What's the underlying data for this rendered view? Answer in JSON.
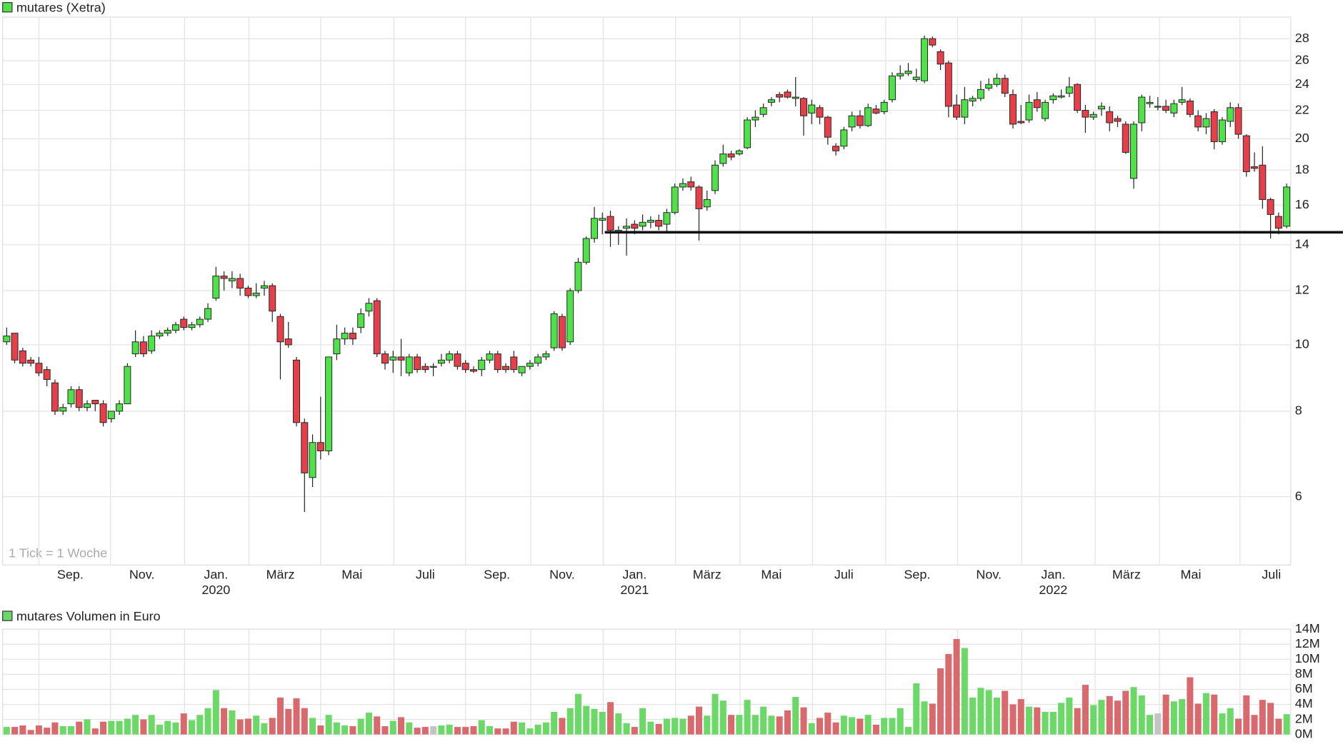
{
  "chart_data": [
    {
      "type": "candlestick",
      "title": "mutares (Xetra)",
      "note": "1 Tick = 1 Woche",
      "log_scale": true,
      "grid": true,
      "up_color": "#4fe04a",
      "down_color": "#e5404a",
      "ylim": [
        4.77,
        30.1
      ],
      "yticks": [
        6,
        8,
        10,
        12,
        14,
        16,
        18,
        20,
        22,
        24,
        26,
        28
      ],
      "xlim": [
        -0.5,
        159.5
      ],
      "xticks": [
        {
          "value": 7.9,
          "label": "Sep."
        },
        {
          "value": 16.8,
          "label": "Nov."
        },
        {
          "value": 26.0,
          "label": "Jan."
        },
        {
          "value": 34.0,
          "label": "März"
        },
        {
          "value": 42.9,
          "label": "Mai"
        },
        {
          "value": 52.0,
          "label": "Juli"
        },
        {
          "value": 60.9,
          "label": "Sep."
        },
        {
          "value": 69.0,
          "label": "Nov."
        },
        {
          "value": 78.0,
          "label": "Jan."
        },
        {
          "value": 87.0,
          "label": "März"
        },
        {
          "value": 95.0,
          "label": "Mai"
        },
        {
          "value": 104.0,
          "label": "Juli"
        },
        {
          "value": 113.1,
          "label": "Sep."
        },
        {
          "value": 122.0,
          "label": "Nov."
        },
        {
          "value": 130.0,
          "label": "Jan."
        },
        {
          "value": 139.1,
          "label": "März"
        },
        {
          "value": 147.1,
          "label": "Mai"
        },
        {
          "value": 157.1,
          "label": "Juli"
        }
      ],
      "year_labels": [
        {
          "value": 26.0,
          "label": "2020"
        },
        {
          "value": 78.0,
          "label": "2021"
        },
        {
          "value": 130.0,
          "label": "2022"
        }
      ],
      "support_line": {
        "x_start": 74.3,
        "value": 14.6
      },
      "open": [
        10.1,
        10.4,
        9.8,
        9.5,
        9.4,
        9.2,
        8.8,
        8.0,
        8.2,
        8.6,
        8.1,
        8.3,
        8.2,
        7.8,
        8.0,
        8.2,
        9.7,
        10.1,
        9.8,
        10.3,
        10.4,
        10.5,
        10.9,
        10.6,
        10.7,
        10.9,
        11.7,
        12.6,
        12.4,
        12.5,
        12.1,
        11.8,
        12.1,
        12.2,
        11.0,
        10.2,
        9.5,
        7.7,
        6.4,
        7.2,
        7.0,
        9.7,
        10.2,
        10.4,
        10.6,
        11.2,
        11.6,
        9.7,
        9.5,
        9.6,
        9.1,
        9.6,
        9.3,
        9.3,
        9.4,
        9.5,
        9.7,
        9.4,
        9.2,
        9.2,
        9.5,
        9.7,
        9.3,
        9.6,
        9.1,
        9.3,
        9.4,
        9.6,
        9.9,
        11.0,
        10.1,
        12.0,
        13.2,
        14.3,
        15.2,
        15.4,
        14.6,
        14.8,
        15.0,
        14.9,
        15.1,
        15.2,
        15.0,
        15.6,
        17.0,
        17.3,
        17.0,
        15.9,
        16.8,
        18.4,
        19.0,
        19.0,
        19.4,
        21.3,
        21.7,
        22.6,
        23.2,
        23.4,
        22.9,
        22.9,
        21.8,
        22.2,
        21.5,
        19.5,
        19.5,
        20.8,
        21.6,
        20.9,
        22.1,
        21.9,
        22.8,
        24.7,
        24.9,
        24.4,
        24.3,
        28.0,
        26.8,
        25.8,
        22.4,
        21.5,
        22.7,
        22.9,
        23.7,
        24.0,
        24.5,
        23.2,
        21.2,
        21.3,
        22.8,
        21.4,
        22.8,
        23.0,
        23.3,
        24.0,
        22.0,
        21.5,
        22.1,
        21.9,
        21.4,
        21.0,
        17.5,
        21.1,
        22.5,
        22.3,
        22.3,
        21.8,
        22.6,
        22.7,
        21.6,
        20.8,
        21.9,
        19.8,
        21.2,
        22.2,
        20.2,
        18.2,
        18.3,
        16.3,
        15.4,
        14.9
      ],
      "high": [
        10.6,
        10.4,
        9.9,
        9.6,
        9.6,
        9.3,
        8.9,
        8.2,
        8.7,
        8.7,
        8.3,
        8.3,
        8.3,
        8.0,
        8.3,
        9.4,
        10.5,
        10.3,
        10.5,
        10.5,
        10.6,
        10.8,
        11.0,
        10.8,
        11.0,
        11.5,
        13.0,
        12.8,
        12.8,
        12.7,
        12.2,
        12.3,
        12.4,
        12.3,
        11.1,
        10.8,
        9.6,
        7.8,
        7.4,
        8.4,
        9.6,
        10.7,
        10.6,
        10.6,
        11.3,
        11.7,
        11.7,
        9.8,
        9.8,
        10.2,
        9.7,
        9.7,
        9.4,
        9.4,
        9.7,
        9.8,
        9.8,
        9.5,
        9.3,
        9.6,
        9.8,
        9.8,
        9.4,
        9.8,
        9.3,
        9.5,
        9.7,
        9.8,
        11.2,
        11.1,
        12.1,
        13.4,
        14.4,
        15.9,
        15.6,
        15.7,
        14.9,
        15.3,
        15.2,
        15.5,
        15.4,
        15.5,
        15.8,
        17.2,
        17.5,
        17.6,
        17.1,
        16.8,
        18.6,
        19.6,
        19.2,
        19.3,
        21.5,
        22.0,
        22.5,
        23.0,
        23.4,
        23.6,
        24.6,
        23.0,
        22.8,
        22.4,
        21.6,
        19.7,
        20.8,
        21.9,
        22.0,
        22.5,
        22.4,
        22.8,
        25.0,
        25.6,
        25.8,
        25.3,
        28.3,
        28.2,
        27.0,
        26.0,
        23.2,
        23.8,
        23.1,
        24.3,
        24.5,
        24.9,
        24.8,
        23.6,
        22.4,
        23.2,
        23.4,
        22.8,
        23.3,
        23.6,
        24.6,
        24.1,
        22.4,
        21.9,
        22.6,
        22.3,
        21.6,
        21.2,
        21.2,
        23.2,
        23.1,
        23.0,
        22.8,
        22.8,
        23.8,
        22.9,
        22.0,
        21.8,
        22.1,
        21.5,
        22.6,
        22.5,
        20.3,
        19.1,
        19.5,
        16.4,
        15.6,
        17.2
      ],
      "low": [
        10.0,
        9.4,
        9.3,
        9.3,
        9.0,
        8.7,
        7.9,
        7.9,
        8.1,
        8.0,
        8.0,
        8.0,
        7.6,
        7.7,
        7.9,
        8.2,
        9.6,
        9.6,
        9.7,
        10.2,
        10.3,
        10.4,
        10.5,
        10.5,
        10.6,
        10.8,
        11.6,
        12.0,
        12.1,
        11.8,
        11.7,
        11.7,
        11.8,
        10.8,
        8.9,
        9.9,
        7.6,
        5.7,
        6.2,
        6.8,
        6.9,
        9.5,
        10.0,
        10.0,
        10.4,
        11.0,
        9.6,
        9.2,
        9.1,
        9.0,
        9.0,
        9.1,
        9.1,
        9.0,
        9.3,
        9.4,
        9.2,
        9.1,
        9.1,
        9.0,
        9.4,
        9.1,
        9.1,
        9.1,
        9.0,
        9.2,
        9.3,
        9.5,
        9.8,
        9.8,
        10.0,
        11.9,
        13.1,
        14.1,
        14.5,
        13.9,
        14.0,
        13.5,
        14.5,
        14.7,
        14.8,
        14.7,
        14.6,
        15.5,
        16.8,
        16.8,
        14.2,
        15.7,
        16.6,
        18.2,
        18.6,
        18.9,
        19.3,
        20.8,
        21.5,
        22.3,
        22.6,
        22.9,
        22.3,
        20.2,
        21.0,
        21.0,
        19.6,
        18.9,
        19.3,
        20.5,
        20.7,
        20.8,
        21.7,
        21.7,
        22.6,
        24.4,
        24.7,
        24.2,
        24.1,
        27.2,
        25.2,
        21.5,
        21.3,
        21.0,
        22.3,
        22.7,
        23.5,
        23.8,
        23.0,
        20.7,
        21.0,
        21.1,
        21.9,
        21.2,
        22.5,
        22.9,
        23.0,
        21.8,
        20.4,
        21.3,
        21.6,
        20.5,
        20.8,
        19.0,
        16.9,
        20.5,
        22.2,
        22.0,
        21.8,
        21.5,
        22.4,
        21.5,
        20.5,
        20.3,
        19.3,
        19.6,
        20.8,
        20.0,
        17.6,
        17.9,
        15.8,
        14.3,
        14.5,
        14.8
      ],
      "close": [
        10.3,
        9.5,
        9.4,
        9.4,
        9.1,
        8.9,
        8.0,
        8.1,
        8.6,
        8.1,
        8.2,
        8.2,
        7.7,
        8.0,
        8.2,
        9.3,
        10.1,
        9.7,
        10.3,
        10.4,
        10.5,
        10.7,
        10.6,
        10.7,
        10.9,
        11.3,
        12.6,
        12.5,
        12.5,
        12.1,
        11.8,
        11.9,
        12.2,
        11.2,
        10.1,
        10.0,
        7.7,
        6.5,
        7.2,
        7.0,
        9.6,
        10.2,
        10.4,
        10.2,
        11.1,
        11.5,
        9.7,
        9.4,
        9.6,
        9.5,
        9.6,
        9.2,
        9.2,
        9.3,
        9.5,
        9.7,
        9.3,
        9.2,
        9.15,
        9.5,
        9.7,
        9.2,
        9.2,
        9.2,
        9.3,
        9.4,
        9.6,
        9.7,
        11.1,
        9.9,
        12.0,
        13.2,
        14.3,
        15.3,
        15.3,
        14.7,
        14.7,
        14.9,
        14.8,
        15.1,
        15.2,
        14.9,
        15.6,
        17.0,
        17.2,
        17.0,
        15.8,
        16.3,
        18.3,
        19.0,
        18.8,
        19.2,
        21.3,
        21.5,
        22.2,
        22.8,
        23.0,
        23.0,
        23.0,
        21.6,
        22.4,
        21.5,
        20.1,
        19.2,
        20.6,
        21.6,
        20.9,
        22.2,
        21.8,
        22.6,
        24.7,
        24.9,
        25.1,
        24.6,
        28.0,
        27.4,
        25.7,
        22.3,
        21.5,
        22.8,
        22.9,
        23.6,
        24.0,
        24.5,
        23.3,
        21.0,
        21.1,
        22.6,
        22.2,
        22.6,
        23.1,
        23.1,
        23.8,
        22.0,
        21.5,
        21.7,
        22.3,
        21.1,
        21.2,
        19.1,
        21.0,
        23.0,
        22.6,
        22.3,
        22.0,
        22.5,
        22.8,
        21.7,
        20.8,
        21.4,
        19.8,
        21.3,
        22.2,
        20.3,
        17.9,
        18.1,
        16.3,
        15.5,
        14.8,
        17.0
      ]
    },
    {
      "type": "bar",
      "title": "mutares Volumen in Euro",
      "grid": true,
      "up_color": "#6cd868",
      "down_color": "#d86a6e",
      "flat_color": "#c4c4c4",
      "ylim": [
        0,
        14000000
      ],
      "yticks": [
        {
          "value": 0,
          "label": "0M"
        },
        {
          "value": 2000000,
          "label": "2M"
        },
        {
          "value": 4000000,
          "label": "4M"
        },
        {
          "value": 6000000,
          "label": "6M"
        },
        {
          "value": 8000000,
          "label": "8M"
        },
        {
          "value": 10000000,
          "label": "10M"
        },
        {
          "value": 12000000,
          "label": "12M"
        },
        {
          "value": 14000000,
          "label": "14M"
        }
      ],
      "values": [
        1000000,
        1000000,
        1200000,
        600000,
        1200000,
        900000,
        1600000,
        1100000,
        1100000,
        1700000,
        2000000,
        800000,
        1700000,
        1800000,
        1800000,
        2100000,
        2600000,
        2000000,
        2600000,
        1300000,
        1800000,
        1600000,
        2800000,
        1900000,
        2600000,
        3500000,
        5900000,
        3500000,
        3200000,
        2000000,
        2100000,
        2500000,
        1500000,
        2200000,
        4900000,
        3400000,
        4800000,
        3500000,
        2200000,
        1200000,
        2600000,
        1600000,
        1200000,
        1100000,
        2100000,
        2900000,
        2400000,
        1100000,
        1800000,
        2300000,
        1600000,
        900000,
        1000000,
        1100000,
        1200000,
        1300000,
        1000000,
        1000000,
        1100000,
        1900000,
        1100000,
        800000,
        800000,
        1700000,
        1600000,
        800000,
        1300000,
        1600000,
        3000000,
        2200000,
        3500000,
        5400000,
        3800000,
        3400000,
        3000000,
        4300000,
        2800000,
        1500000,
        1000000,
        3500000,
        1700000,
        1400000,
        2100000,
        2200000,
        2100000,
        2500000,
        3700000,
        2500000,
        5400000,
        4500000,
        2600000,
        2600000,
        4600000,
        2600000,
        3700000,
        2500000,
        2400000,
        3200000,
        5000000,
        3600000,
        1500000,
        2200000,
        2900000,
        1600000,
        2500000,
        2300000,
        2100000,
        2600000,
        1300000,
        2200000,
        2200000,
        3500000,
        1000000,
        6800000,
        4400000,
        4100000,
        8800000,
        10700000,
        12700000,
        11500000,
        4900000,
        6200000,
        5900000,
        4900000,
        5800000,
        4000000,
        4700000,
        3700000,
        3600000,
        3000000,
        3000000,
        4200000,
        4900000,
        3500000,
        6600000,
        3900000,
        4600000,
        5100000,
        4500000,
        5800000,
        6300000,
        5200000,
        2600000,
        2800000,
        5300000,
        4400000,
        4700000,
        7600000,
        4100000,
        5500000,
        5300000,
        2800000,
        3500000,
        2100000,
        5200000,
        2600000,
        4600000,
        4200000,
        2100000,
        2700000
      ]
    }
  ]
}
